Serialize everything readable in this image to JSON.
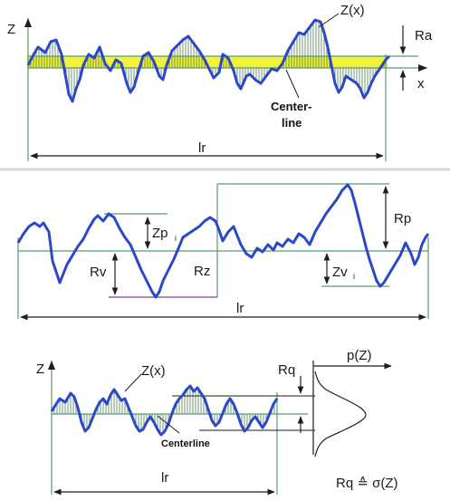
{
  "panel_top": {
    "axis_z": "Z",
    "axis_x": "x",
    "profile_label": "Z(x)",
    "ra_label": "Ra",
    "centerline_label_1": "Center-",
    "centerline_label_2": "line",
    "length_label": "lr"
  },
  "panel_middle": {
    "zp_label": "Zp",
    "zp_sub": "i",
    "rv_label": "Rv",
    "rz_label": "Rz",
    "rp_label": "Rp",
    "zv_label": "Zv",
    "zv_sub": "i",
    "length_label": "lr"
  },
  "panel_bottom": {
    "axis_z": "Z",
    "profile_label": "Z(x)",
    "rq_label": "Rq",
    "pz_label": "p(Z)",
    "centerline_label": "Centerline",
    "length_label": "lr",
    "formula": "Rq ≙ σ(Z)"
  },
  "colors": {
    "profile": "#2a48c8",
    "band": "#f2f23a",
    "guide": "#5a9a6a",
    "hatch": "#3c6a3c",
    "marker": "#7a3aa0"
  }
}
